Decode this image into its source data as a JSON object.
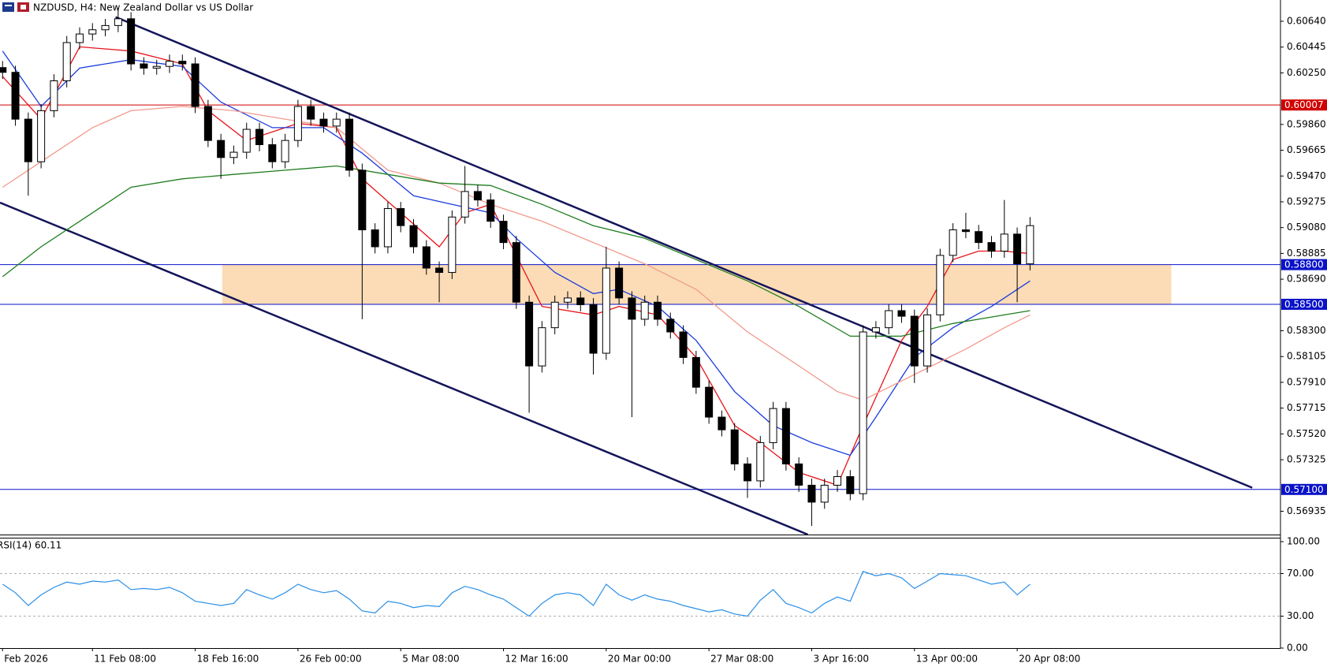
{
  "header": {
    "title": "NZDUSD, H4:  New Zealand Dollar vs US Dollar"
  },
  "chart_data": [
    {
      "type": "candlestick",
      "categories": [
        "Feb 2026",
        null,
        null,
        null,
        null,
        null,
        null,
        "11 Feb 08:00",
        null,
        null,
        null,
        null,
        null,
        null,
        null,
        "18 Feb 16:00",
        null,
        null,
        null,
        null,
        null,
        null,
        null,
        "26 Feb 00:00",
        null,
        null,
        null,
        null,
        null,
        null,
        null,
        "5 Mar 08:00",
        null,
        null,
        null,
        null,
        null,
        null,
        null,
        "12 Mar 16:00",
        null,
        null,
        null,
        null,
        null,
        null,
        null,
        "20 Mar 00:00",
        null,
        null,
        null,
        null,
        null,
        null,
        null,
        "27 Mar 08:00",
        null,
        null,
        null,
        null,
        null,
        null,
        null,
        "3 Apr 16:00",
        null,
        null,
        null,
        null,
        null,
        null,
        null,
        "13 Apr 00:00",
        null,
        null,
        null,
        null,
        null,
        null,
        null,
        "20 Apr 08:00",
        null
      ],
      "open": [
        0.6029,
        0.60254,
        0.599,
        0.59578,
        0.59964,
        0.6019,
        0.60479,
        0.60544,
        0.60576,
        0.60608,
        0.60659,
        0.60318,
        0.60286,
        0.60299,
        0.60338,
        0.60318,
        0.59996,
        0.59739,
        0.5961,
        0.5965,
        0.59823,
        0.59707,
        0.59578,
        0.59739,
        0.59996,
        0.599,
        0.59848,
        0.599,
        0.59514,
        0.59063,
        0.58935,
        0.59224,
        0.59095,
        0.58935,
        0.58774,
        0.58741,
        0.5916,
        0.59353,
        0.59289,
        0.59128,
        0.58967,
        0.58516,
        0.58034,
        0.58323,
        0.58516,
        0.58548,
        0.58497,
        0.5813,
        0.58774,
        0.58548,
        0.58387,
        0.58516,
        0.58387,
        0.58291,
        0.58098,
        0.57873,
        0.57647,
        0.57551,
        0.57293,
        0.57165,
        0.57454,
        0.57712,
        0.57293,
        0.57132,
        0.57004,
        0.57132,
        0.57197,
        0.57068,
        0.58291,
        0.58323,
        0.58452,
        0.5841,
        0.58034,
        0.5842,
        0.5887,
        0.59063,
        0.5905,
        0.58967,
        0.58902,
        0.59031,
        0.58806
      ],
      "high": [
        0.6034,
        0.60304,
        0.5995,
        0.60014,
        0.6024,
        0.60529,
        0.60594,
        0.60626,
        0.60658,
        0.6074,
        0.60709,
        0.60368,
        0.60349,
        0.60388,
        0.60388,
        0.60368,
        0.60046,
        0.59789,
        0.597,
        0.59873,
        0.59873,
        0.59757,
        0.59789,
        0.60046,
        0.60046,
        0.5995,
        0.5995,
        0.5995,
        0.59564,
        0.59113,
        0.59274,
        0.59274,
        0.59145,
        0.58985,
        0.58824,
        0.5921,
        0.59546,
        0.59403,
        0.59339,
        0.59178,
        0.59017,
        0.58566,
        0.58373,
        0.58566,
        0.58598,
        0.58598,
        0.58547,
        0.58935,
        0.58824,
        0.58598,
        0.58566,
        0.58566,
        0.58437,
        0.58341,
        0.58148,
        0.57923,
        0.57697,
        0.57601,
        0.57343,
        0.57504,
        0.57762,
        0.57762,
        0.57343,
        0.57182,
        0.57182,
        0.57247,
        0.57247,
        0.58341,
        0.58373,
        0.58502,
        0.58502,
        0.5846,
        0.5847,
        0.5892,
        0.59113,
        0.59192,
        0.591,
        0.59017,
        0.59289,
        0.59081,
        0.5916
      ],
      "low": [
        0.60204,
        0.5985,
        0.59321,
        0.59528,
        0.59914,
        0.6014,
        0.60429,
        0.60494,
        0.60526,
        0.60558,
        0.60268,
        0.60236,
        0.60236,
        0.60249,
        0.60268,
        0.59946,
        0.59689,
        0.59449,
        0.5956,
        0.596,
        0.59657,
        0.59528,
        0.59528,
        0.59689,
        0.5985,
        0.59798,
        0.59798,
        0.59464,
        0.58387,
        0.58885,
        0.58885,
        0.59045,
        0.58885,
        0.58724,
        0.58516,
        0.58691,
        0.5911,
        0.59239,
        0.59078,
        0.58917,
        0.58466,
        0.5768,
        0.57984,
        0.58273,
        0.58466,
        0.58447,
        0.57969,
        0.5808,
        0.58498,
        0.57647,
        0.58337,
        0.58337,
        0.58241,
        0.58048,
        0.57823,
        0.57597,
        0.57501,
        0.57243,
        0.57036,
        0.57115,
        0.57404,
        0.57243,
        0.57082,
        0.56824,
        0.56954,
        0.57082,
        0.57018,
        0.57018,
        0.58241,
        0.58273,
        0.5836,
        0.57905,
        0.57984,
        0.5837,
        0.5882,
        0.59,
        0.58917,
        0.58852,
        0.58852,
        0.58516,
        0.58756
      ],
      "close": [
        0.60254,
        0.599,
        0.59578,
        0.59964,
        0.6019,
        0.60479,
        0.60544,
        0.60576,
        0.60608,
        0.60659,
        0.60318,
        0.60286,
        0.60299,
        0.60338,
        0.60318,
        0.59996,
        0.59739,
        0.5961,
        0.5965,
        0.59823,
        0.59707,
        0.59578,
        0.59739,
        0.59996,
        0.599,
        0.59848,
        0.599,
        0.59514,
        0.59063,
        0.58935,
        0.59224,
        0.59095,
        0.58935,
        0.58774,
        0.58741,
        0.5916,
        0.59353,
        0.59289,
        0.59128,
        0.58967,
        0.58516,
        0.58034,
        0.58323,
        0.58516,
        0.58548,
        0.58497,
        0.5813,
        0.58774,
        0.58548,
        0.58387,
        0.58516,
        0.58387,
        0.58291,
        0.58098,
        0.57873,
        0.57647,
        0.57551,
        0.57293,
        0.57165,
        0.57454,
        0.57712,
        0.57293,
        0.57132,
        0.57004,
        0.57132,
        0.57197,
        0.57068,
        0.58291,
        0.58323,
        0.58452,
        0.5841,
        0.58034,
        0.5842,
        0.5887,
        0.59063,
        0.5905,
        0.58967,
        0.58902,
        0.59031,
        0.58806,
        0.59095
      ],
      "bull_color": "#ffffff",
      "bear_color": "#000000",
      "wick_color": "#000000",
      "xlim": [
        -0.2,
        99.5
      ],
      "ylim": [
        0.56759,
        0.60801
      ],
      "yticks": [
        {
          "value": 0.6064,
          "label": "0.60640"
        },
        0.60445,
        {
          "value": 0.6025,
          "label": "0.60250"
        },
        {
          "value": 0.5986,
          "label": "0.59860"
        },
        0.59665,
        {
          "value": 0.5947,
          "label": "0.59470"
        },
        0.59275,
        {
          "value": 0.5908,
          "label": "0.59080"
        },
        0.58885,
        {
          "value": 0.5869,
          "label": "0.58690"
        },
        {
          "value": 0.583,
          "label": "0.58300"
        },
        0.58105,
        {
          "value": 0.5791,
          "label": "0.57910"
        },
        0.57715,
        {
          "value": 0.5752,
          "label": "0.57520"
        },
        0.57325,
        0.56935
      ],
      "lines": [
        {
          "color": "#e8141a",
          "x": [
            0,
            3,
            6,
            10,
            14,
            16,
            19,
            23,
            26,
            28,
            31,
            34,
            36,
            38,
            40,
            42,
            46,
            48,
            51,
            54,
            57,
            59,
            62,
            65,
            67,
            70,
            72,
            74,
            76,
            78,
            80
          ],
          "values": [
            0.60222,
            0.599,
            0.60447,
            0.60415,
            0.60318,
            0.59964,
            0.59739,
            0.59868,
            0.59836,
            0.59449,
            0.59192,
            0.58935,
            0.59192,
            0.59256,
            0.5887,
            0.58484,
            0.5842,
            0.58484,
            0.5842,
            0.58098,
            0.57583,
            0.57454,
            0.57229,
            0.57132,
            0.57583,
            0.58227,
            0.58484,
            0.58838,
            0.58902,
            0.58902,
            0.58883
          ]
        },
        {
          "color": "#1c3ddb",
          "x": [
            0,
            3,
            6,
            10,
            14,
            17,
            21,
            25,
            28,
            32,
            35,
            38,
            40,
            43,
            46,
            48,
            51,
            54,
            57,
            60,
            63,
            66,
            68,
            71,
            74,
            77,
            80
          ],
          "values": [
            0.60415,
            0.59996,
            0.60286,
            0.6035,
            0.60299,
            0.60029,
            0.59836,
            0.59836,
            0.59643,
            0.59321,
            0.59256,
            0.59192,
            0.58999,
            0.58741,
            0.58581,
            0.58613,
            0.58484,
            0.58227,
            0.5784,
            0.57583,
            0.57454,
            0.57358,
            0.57647,
            0.58098,
            0.58323,
            0.58484,
            0.58677
          ]
        },
        {
          "color": "#f29a8c",
          "x": [
            0,
            3,
            7,
            10,
            14,
            18,
            22,
            26,
            30,
            34,
            38,
            42,
            46,
            50,
            54,
            58,
            62,
            65,
            67,
            71,
            75,
            78,
            80
          ],
          "values": [
            0.59385,
            0.59578,
            0.59836,
            0.59964,
            0.59996,
            0.59964,
            0.599,
            0.59836,
            0.59514,
            0.59417,
            0.59256,
            0.59128,
            0.58967,
            0.58806,
            0.58613,
            0.58291,
            0.58034,
            0.5784,
            0.57776,
            0.57969,
            0.58162,
            0.58323,
            0.5842
          ]
        },
        {
          "color": "#1e7d1e",
          "x": [
            0,
            3,
            7,
            10,
            14,
            18,
            22,
            26,
            30,
            34,
            38,
            42,
            46,
            50,
            54,
            58,
            62,
            66,
            70,
            74,
            78,
            80
          ],
          "values": [
            0.58709,
            0.58935,
            0.59192,
            0.59385,
            0.59449,
            0.59482,
            0.59514,
            0.59546,
            0.59482,
            0.59417,
            0.59398,
            0.59256,
            0.59095,
            0.58999,
            0.58838,
            0.58677,
            0.58484,
            0.58259,
            0.58259,
            0.58355,
            0.5842,
            0.58452
          ]
        }
      ],
      "trendlines": [
        {
          "color": "#14145a",
          "x": [
            8.8,
            97.3
          ],
          "values": [
            0.60672,
            0.57113
          ]
        },
        {
          "color": "#14145a",
          "x": [
            -0.2,
            62.7
          ],
          "values": [
            0.59269,
            0.56759
          ]
        }
      ],
      "zone": {
        "color": "#fbdcb6",
        "x": [
          17.1,
          91.0
        ],
        "values": [
          0.585,
          0.588
        ]
      },
      "levels": [
        {
          "value": 0.60007,
          "label": "0.60007",
          "color": "#d10000"
        },
        {
          "value": 0.588,
          "label": "0.58800",
          "color": "#0a12c8"
        },
        {
          "value": 0.585,
          "label": "0.58500",
          "color": "#0a12c8"
        },
        {
          "value": 0.571,
          "label": "0.57100",
          "color": "#0a12c8"
        }
      ]
    },
    {
      "type": "line",
      "label": "RSI(14) 60.11",
      "color": "#2a8fe8",
      "values": [
        60,
        52,
        40,
        50,
        57,
        62,
        60,
        63,
        62,
        64,
        55,
        56,
        55,
        57,
        52,
        44,
        42,
        40,
        42,
        55,
        50,
        46,
        52,
        60,
        55,
        52,
        54,
        46,
        35,
        33,
        44,
        42,
        38,
        40,
        39,
        52,
        58,
        55,
        50,
        46,
        38,
        30,
        42,
        50,
        52,
        50,
        40,
        60,
        50,
        45,
        50,
        46,
        44,
        40,
        37,
        34,
        36,
        32,
        30,
        45,
        55,
        42,
        38,
        33,
        42,
        48,
        44,
        72,
        68,
        70,
        66,
        56,
        63,
        70,
        69,
        68,
        64,
        60,
        62,
        50,
        60.11
      ],
      "ylim": [
        0,
        100
      ],
      "yticks": [
        {
          "value": 100,
          "label": "100.00"
        },
        {
          "value": 70,
          "label": "70.00"
        },
        {
          "value": 30,
          "label": "30.00"
        },
        {
          "value": 0,
          "label": "0.00"
        }
      ],
      "levels": [
        70,
        30
      ]
    }
  ]
}
